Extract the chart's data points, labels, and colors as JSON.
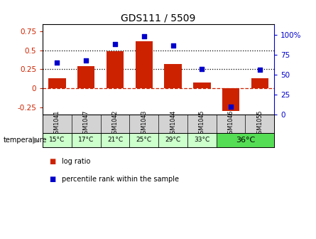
{
  "title": "GDS111 / 5509",
  "samples": [
    "GSM1041",
    "GSM1047",
    "GSM1042",
    "GSM1043",
    "GSM1044",
    "GSM1045",
    "GSM1046",
    "GSM1055"
  ],
  "log_ratio": [
    0.13,
    0.29,
    0.49,
    0.62,
    0.32,
    0.08,
    -0.3,
    0.13
  ],
  "percentile": [
    65,
    68,
    88,
    98,
    86,
    57,
    10,
    56
  ],
  "bar_color": "#cc2200",
  "dot_color": "#0000cc",
  "bg_header": "#d3d3d3",
  "bg_temp_light": "#ccffcc",
  "bg_temp_green": "#55dd55",
  "ylim_left": [
    -0.35,
    0.85
  ],
  "ylim_right": [
    0,
    113.33
  ],
  "yticks_left": [
    -0.25,
    0.0,
    0.25,
    0.5,
    0.75
  ],
  "yticks_right": [
    0,
    25,
    50,
    75,
    100
  ],
  "ytick_labels_left": [
    "-0.25",
    "0",
    "0.25",
    "0.5",
    "0.75"
  ],
  "ytick_labels_right": [
    "0",
    "25",
    "50",
    "75",
    "100%"
  ],
  "hlines": [
    0.25,
    0.5
  ],
  "legend_labels": [
    "log ratio",
    "percentile rank within the sample"
  ],
  "legend_colors": [
    "#cc2200",
    "#0000cc"
  ],
  "temp_label": "temperature",
  "temp_entries": [
    [
      0,
      0,
      "15°C",
      "#ccffcc"
    ],
    [
      1,
      1,
      "17°C",
      "#ccffcc"
    ],
    [
      2,
      2,
      "21°C",
      "#ccffcc"
    ],
    [
      3,
      3,
      "25°C",
      "#ccffcc"
    ],
    [
      4,
      4,
      "29°C",
      "#ccffcc"
    ],
    [
      5,
      5,
      "33°C",
      "#ccffcc"
    ],
    [
      6,
      7,
      "36°C",
      "#55dd55"
    ]
  ]
}
